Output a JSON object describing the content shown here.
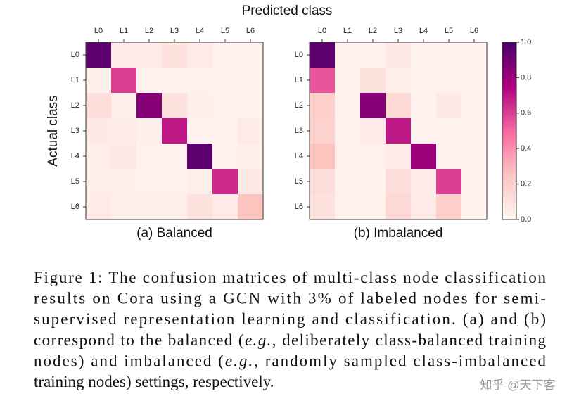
{
  "figure": {
    "xlabel": "Predicted class",
    "ylabel": "Actual class",
    "colorbar": {
      "lim": [
        0,
        1
      ],
      "ticks": [
        {
          "value": 0,
          "label": "0.0"
        },
        0.2,
        0.4,
        0.6,
        0.8,
        {
          "value": 1,
          "label": "1.0"
        }
      ],
      "colormap": [
        "#fff5f2",
        "#fcc5c0",
        "#f768a1",
        "#ae017e",
        "#49006a"
      ]
    }
  },
  "chart_data": [
    {
      "type": "heatmap",
      "subtitle": "(a) Balanced",
      "x_categories": [
        "L0",
        "L1",
        "L2",
        "L3",
        "L4",
        "L5",
        "L6"
      ],
      "y_categories": [
        "L0",
        "L1",
        "L2",
        "L3",
        "L4",
        "L5",
        "L6"
      ],
      "values": [
        [
          0.95,
          0.05,
          0.05,
          0.1,
          0.05,
          0.02,
          0.02
        ],
        [
          0.03,
          0.6,
          0.02,
          0.02,
          0.02,
          0.02,
          0.02
        ],
        [
          0.12,
          0.03,
          0.85,
          0.1,
          0.03,
          0.02,
          0.02
        ],
        [
          0.06,
          0.05,
          0.03,
          0.7,
          0.02,
          0.02,
          0.05
        ],
        [
          0.04,
          0.06,
          0.02,
          0.02,
          0.95,
          0.02,
          0.03
        ],
        [
          0.04,
          0.03,
          0.02,
          0.02,
          0.04,
          0.65,
          0.06
        ],
        [
          0.05,
          0.03,
          0.03,
          0.03,
          0.1,
          0.05,
          0.25
        ]
      ]
    },
    {
      "type": "heatmap",
      "subtitle": "(b) Imbalanced",
      "x_categories": [
        "L0",
        "L1",
        "L2",
        "L3",
        "L4",
        "L5",
        "L6"
      ],
      "y_categories": [
        "L0",
        "L1",
        "L2",
        "L3",
        "L4",
        "L5",
        "L6"
      ],
      "values": [
        [
          0.95,
          0.02,
          0.02,
          0.06,
          0.02,
          0.02,
          0.02
        ],
        [
          0.55,
          0.02,
          0.1,
          0.03,
          0.02,
          0.02,
          0.02
        ],
        [
          0.2,
          0.02,
          0.85,
          0.15,
          0.02,
          0.06,
          0.02
        ],
        [
          0.18,
          0.02,
          0.05,
          0.7,
          0.02,
          0.02,
          0.02
        ],
        [
          0.25,
          0.02,
          0.02,
          0.05,
          0.8,
          0.02,
          0.02
        ],
        [
          0.12,
          0.02,
          0.02,
          0.12,
          0.05,
          0.6,
          0.02
        ],
        [
          0.1,
          0.02,
          0.02,
          0.15,
          0.05,
          0.2,
          0.02
        ]
      ]
    }
  ],
  "caption": {
    "lines": [
      [
        "Figure 1: The confusion matrices of multi-class node classification"
      ],
      [
        "results on Cora using a GCN with 3% of labeled nodes for semi-"
      ],
      [
        "supervised representation learning and classification.  (a) and (b)"
      ],
      [
        "correspond to the balanced (",
        "e.g.",
        ", deliberately class-balanced training"
      ],
      [
        "nodes) and imbalanced (",
        "e.g.",
        ", randomly sampled class-imbalanced"
      ],
      [
        "training nodes) settings, respectively."
      ]
    ]
  },
  "watermark": "知乎 @天下客"
}
